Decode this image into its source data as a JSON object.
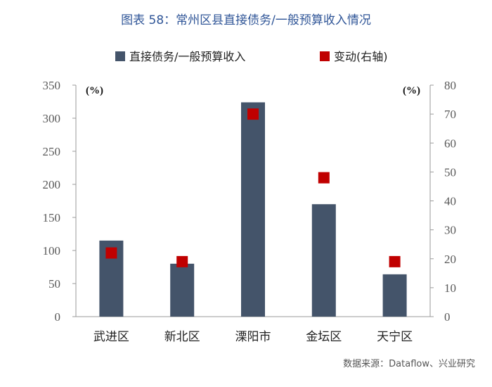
{
  "title": "图表 58：常州区县直接债务/一般预算收入情况",
  "source": "数据来源：Dataflow、兴业研究",
  "chart_data": {
    "type": "bar",
    "categories": [
      "武进区",
      "新北区",
      "溧阳市",
      "金坛区",
      "天宁区"
    ],
    "series": [
      {
        "name": "直接债务/一般预算收入",
        "kind": "bar",
        "axis": "left",
        "values": [
          115,
          80,
          324,
          170,
          64
        ],
        "color": "#44546a"
      },
      {
        "name": "变动(右轴)",
        "kind": "marker",
        "axis": "right",
        "values": [
          22,
          19,
          70,
          48,
          19
        ],
        "color": "#c00000"
      }
    ],
    "left_axis": {
      "unit": "(%)",
      "ylim": [
        0,
        350
      ],
      "ticks": [
        0,
        50,
        100,
        150,
        200,
        250,
        300,
        350
      ]
    },
    "right_axis": {
      "unit": "(%)",
      "ylim": [
        0,
        80
      ],
      "ticks": [
        0,
        10,
        20,
        30,
        40,
        50,
        60,
        70,
        80
      ]
    },
    "legend_position": "top",
    "grid": false
  }
}
